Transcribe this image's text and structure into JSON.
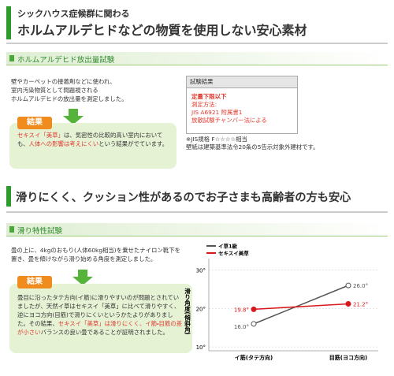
{
  "header1": {
    "line1": "シックハウス症候群に関わる",
    "line2": "ホルムアルデヒドなどの物質を使用しない安心素材"
  },
  "section1": {
    "title": "ホルムアルデヒド放出量試験",
    "paragraph": [
      "壁やカーペットの接着剤などに使われ、",
      "室内汚染物質として問題視される",
      "ホルムアルデヒドの放出量を測定しました。"
    ],
    "result_label": "結果",
    "result_text": [
      "セキスイ「美草」",
      "は、気密性の比較的高い室内においても、",
      "人体への影響は考えにくい",
      "という結果がでています。"
    ],
    "box": {
      "title": "試験結果",
      "highlight": "定量下限以下",
      "lines": [
        "測定方法:",
        "JIS A6921 附属書1",
        "放散試験チャンバー法による"
      ]
    },
    "notes": [
      "※JIS規格 F☆☆☆☆相当",
      "壁紙は建築基準法令20条の5告示対象外建材です。"
    ]
  },
  "header2": "滑りにくく、クッション性があるのでお子さまも高齢者の方も安心",
  "section2": {
    "title": "滑り特性試験",
    "paragraph": "畳の上に、4kgのおもり(人体60kg相当)を乗せたナイロン靴下を置き、畳を傾けながら滑り始める角度を測定しました。",
    "result_label": "結果",
    "result_text": [
      "畳目に沿ったタテ方向(イ筋)に滑りやすいのが問題とされていましたが、天然イ草はセキスイ「美草」に比べて滑りやすく、逆にヨコ方向(目筋)で滑りにくいというかたよりがありました。その結果、",
      "セキスイ「美草」は滑りにくく、イ筋・目筋の差が小さい",
      "バランスの良い畳であることが証明されました。"
    ]
  },
  "chart_data": {
    "type": "line",
    "y_label": "滑り角度(傾斜角)",
    "categories": [
      "イ筋(タテ方向)",
      "目筋(ヨコ方向)"
    ],
    "series": [
      {
        "name": "イ草1級",
        "color": "#555555",
        "values": [
          16.0,
          26.0
        ],
        "value_labels": [
          "16.0°",
          "26.0°"
        ]
      },
      {
        "name": "セキスイ美草",
        "color": "#d7191c",
        "values": [
          19.8,
          21.2
        ],
        "value_labels": [
          "19.8°",
          "21.2°"
        ]
      }
    ],
    "ylim": [
      9,
      33
    ],
    "yticks": [
      {
        "value": 10,
        "label": "10°"
      },
      {
        "value": 20,
        "label": "20°"
      },
      {
        "value": 30,
        "label": "30°"
      }
    ],
    "grid": true
  }
}
